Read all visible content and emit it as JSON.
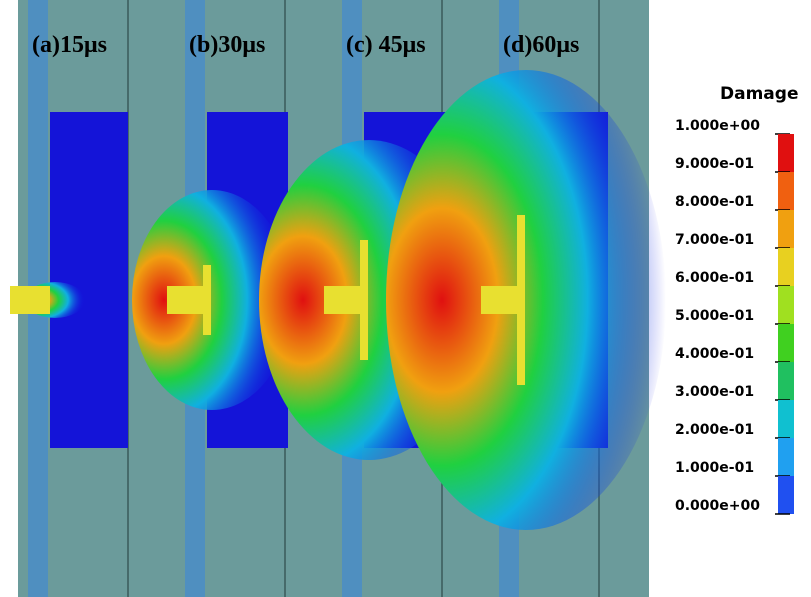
{
  "panels": [
    {
      "label": "(a)15μs"
    },
    {
      "label": "(b)30μs"
    },
    {
      "label": "(c) 45μs"
    },
    {
      "label": "(d)60μs"
    }
  ],
  "legend": {
    "title": "Damage",
    "labels": [
      "1.000e+00",
      "9.000e-01",
      "8.000e-01",
      "7.000e-01",
      "6.000e-01",
      "5.000e-01",
      "4.000e-01",
      "3.000e-01",
      "2.000e-01",
      "1.000e-01",
      "0.000e+00"
    ]
  }
}
